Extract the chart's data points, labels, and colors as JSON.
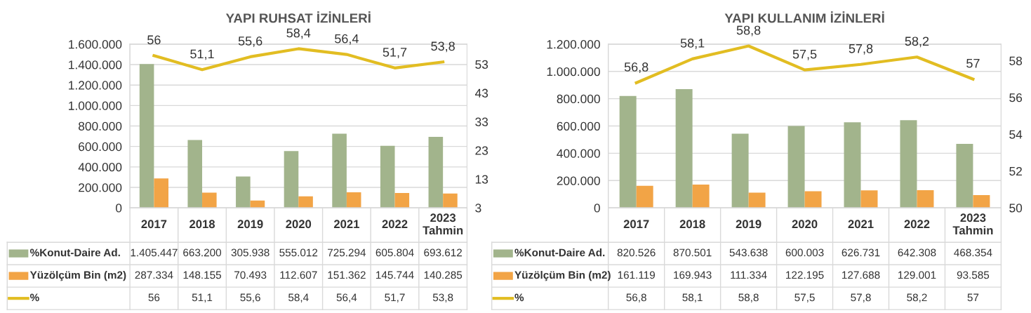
{
  "chart_data": [
    {
      "type": "bar",
      "title": "YAPI RUHSAT İZİNLERİ",
      "categories": [
        "2017",
        "2018",
        "2019",
        "2020",
        "2021",
        "2022",
        "2023\nTahmin"
      ],
      "series": [
        {
          "name": "%Konut-Daire Ad.",
          "color": "#a2b48c",
          "values": [
            1405447,
            663200,
            305938,
            555012,
            725294,
            605804,
            693612
          ],
          "value_labels": [
            "1.405.447",
            "663.200",
            "305.938",
            "555.012",
            "725.294",
            "605.804",
            "693.612"
          ]
        },
        {
          "name": "Yüzölçüm Bin (m2)",
          "color": "#f2a446",
          "values": [
            287334,
            148155,
            70493,
            112607,
            151362,
            145744,
            140285
          ],
          "value_labels": [
            "287.334",
            "148.155",
            "70.493",
            "112.607",
            "151.362",
            "145.744",
            "140.285"
          ]
        },
        {
          "name": "%",
          "type": "line",
          "axis": "y2",
          "color": "#e2bd22",
          "values": [
            56,
            51.1,
            55.6,
            58.4,
            56.4,
            51.7,
            53.8
          ],
          "value_labels": [
            "56",
            "51,1",
            "55,6",
            "58,4",
            "56,4",
            "51,7",
            "53,8"
          ]
        }
      ],
      "ylim": [
        0,
        1600000
      ],
      "yticks": [
        {
          "value": 0,
          "label": "0"
        },
        {
          "value": 200000,
          "label": "200.000"
        },
        {
          "value": 400000,
          "label": "400.000"
        },
        {
          "value": 600000,
          "label": "600.000"
        },
        {
          "value": 800000,
          "label": "800.000"
        },
        {
          "value": 1000000,
          "label": "1.000.000"
        },
        {
          "value": 1200000,
          "label": "1.200.000"
        },
        {
          "value": 1400000,
          "label": "1.400.000"
        },
        {
          "value": 1600000,
          "label": "1.600.000"
        }
      ],
      "y2lim": [
        3,
        60
      ],
      "y2ticks": [
        3,
        13,
        23,
        33,
        43,
        53
      ],
      "grid": "y",
      "legend": "bottom left"
    },
    {
      "type": "bar",
      "title": "YAPI KULLANIM İZİNLERİ",
      "categories": [
        "2017",
        "2018",
        "2019",
        "2020",
        "2021",
        "2022",
        "2023\nTahmin"
      ],
      "series": [
        {
          "name": "%Konut-Daire Ad.",
          "color": "#a2b48c",
          "values": [
            820526,
            870501,
            543638,
            600003,
            626731,
            642308,
            468354
          ],
          "value_labels": [
            "820.526",
            "870.501",
            "543.638",
            "600.003",
            "626.731",
            "642.308",
            "468.354"
          ]
        },
        {
          "name": "Yüzölçüm Bin (m2)",
          "color": "#f2a446",
          "values": [
            161119,
            169943,
            111334,
            122195,
            127688,
            129001,
            93585
          ],
          "value_labels": [
            "161.119",
            "169.943",
            "111.334",
            "122.195",
            "127.688",
            "129.001",
            "93.585"
          ]
        },
        {
          "name": "%",
          "type": "line",
          "axis": "y2",
          "color": "#e2bd22",
          "values": [
            56.8,
            58.1,
            58.8,
            57.5,
            57.8,
            58.2,
            57
          ],
          "value_labels": [
            "56,8",
            "58,1",
            "58,8",
            "57,5",
            "57,8",
            "58,2",
            "57"
          ]
        }
      ],
      "ylim": [
        0,
        1200000
      ],
      "yticks": [
        {
          "value": 0,
          "label": "0"
        },
        {
          "value": 200000,
          "label": "200.000"
        },
        {
          "value": 400000,
          "label": "400.000"
        },
        {
          "value": 600000,
          "label": "600.000"
        },
        {
          "value": 800000,
          "label": "800.000"
        },
        {
          "value": 1000000,
          "label": "1.000.000"
        },
        {
          "value": 1200000,
          "label": "1.200.000"
        }
      ],
      "y2lim": [
        50,
        58.9
      ],
      "y2ticks": [
        50,
        52,
        54,
        56,
        58
      ],
      "grid": "y",
      "legend": "bottom left"
    }
  ]
}
